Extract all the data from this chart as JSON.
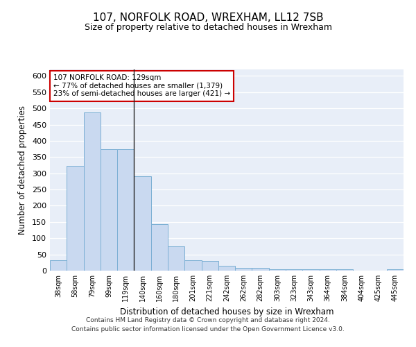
{
  "title_line1": "107, NORFOLK ROAD, WREXHAM, LL12 7SB",
  "title_line2": "Size of property relative to detached houses in Wrexham",
  "xlabel": "Distribution of detached houses by size in Wrexham",
  "ylabel": "Number of detached properties",
  "bar_labels": [
    "38sqm",
    "58sqm",
    "79sqm",
    "99sqm",
    "119sqm",
    "140sqm",
    "160sqm",
    "180sqm",
    "201sqm",
    "221sqm",
    "242sqm",
    "262sqm",
    "282sqm",
    "303sqm",
    "323sqm",
    "343sqm",
    "364sqm",
    "384sqm",
    "404sqm",
    "425sqm",
    "445sqm"
  ],
  "bar_values": [
    32,
    322,
    487,
    375,
    375,
    290,
    143,
    75,
    32,
    30,
    15,
    8,
    8,
    5,
    5,
    5,
    5,
    5,
    0,
    0,
    5
  ],
  "bar_color": "#c9d9f0",
  "bar_edge_color": "#7bafd4",
  "bg_color": "#e8eef8",
  "grid_color": "#ffffff",
  "annotation_box_facecolor": "#ffffff",
  "annotation_border_color": "#cc0000",
  "annotation_text_line1": "107 NORFOLK ROAD: 129sqm",
  "annotation_text_line2": "← 77% of detached houses are smaller (1,379)",
  "annotation_text_line3": "23% of semi-detached houses are larger (421) →",
  "ylim": [
    0,
    620
  ],
  "yticks": [
    0,
    50,
    100,
    150,
    200,
    250,
    300,
    350,
    400,
    450,
    500,
    550,
    600
  ],
  "footnote_line1": "Contains HM Land Registry data © Crown copyright and database right 2024.",
  "footnote_line2": "Contains public sector information licensed under the Open Government Licence v3.0.",
  "fig_width": 6.0,
  "fig_height": 5.0,
  "dpi": 100
}
